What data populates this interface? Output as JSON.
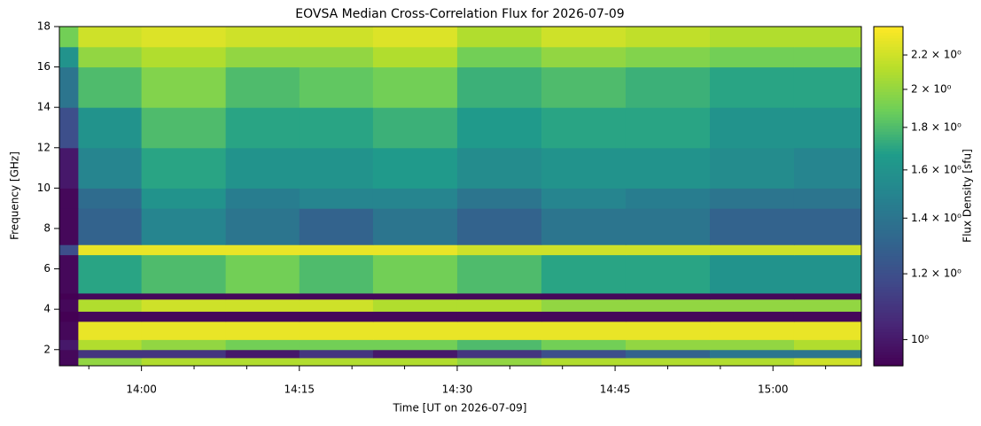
{
  "chart_data": {
    "type": "heatmap",
    "title": "EOVSA Median Cross-Correlation Flux for 2026-07-09",
    "x_label": "Time [UT on 2026-07-09]",
    "y_label": "Frequency [GHz]",
    "colorbar_label": "Flux Density [sfu]",
    "colormap": "viridis",
    "color_scale": "log",
    "x": [
      832.2,
      834,
      840,
      848,
      855,
      862,
      870,
      878,
      886,
      894,
      902,
      908.4
    ],
    "y": [
      1.2,
      1.6,
      2.0,
      2.5,
      3.4,
      3.9,
      4.5,
      4.8,
      6.7,
      7.2,
      9,
      10,
      12,
      14,
      16,
      17,
      18
    ],
    "z": [
      [
        0.95,
        2.0,
        2.1,
        2.1,
        2.1,
        2.1,
        2.0,
        2.1,
        2.1,
        2.1,
        2.2
      ],
      [
        0.95,
        1.1,
        1.1,
        1.0,
        1.1,
        1.0,
        1.1,
        1.2,
        1.3,
        1.4,
        1.4
      ],
      [
        1.0,
        2.1,
        2.0,
        1.9,
        1.9,
        1.9,
        1.8,
        1.9,
        2.0,
        2.0,
        2.1
      ],
      [
        0.95,
        2.3,
        2.3,
        2.3,
        2.3,
        2.3,
        2.3,
        2.3,
        2.3,
        2.3,
        2.3
      ],
      [
        0.93,
        0.95,
        0.95,
        0.95,
        0.95,
        0.95,
        0.95,
        0.95,
        0.95,
        0.95,
        0.95
      ],
      [
        0.95,
        2.1,
        2.2,
        2.2,
        2.2,
        2.1,
        2.1,
        2.0,
        2.0,
        2.0,
        2.0
      ],
      [
        0.93,
        0.95,
        0.95,
        0.95,
        0.95,
        0.95,
        0.95,
        0.95,
        0.95,
        0.95,
        0.95
      ],
      [
        0.95,
        1.7,
        1.8,
        1.9,
        1.8,
        1.9,
        1.8,
        1.7,
        1.7,
        1.6,
        1.6
      ],
      [
        1.2,
        2.3,
        2.3,
        2.3,
        2.3,
        2.3,
        2.2,
        2.2,
        2.2,
        2.2,
        2.2
      ],
      [
        0.95,
        1.3,
        1.5,
        1.4,
        1.3,
        1.4,
        1.3,
        1.4,
        1.4,
        1.3,
        1.3
      ],
      [
        0.95,
        1.35,
        1.6,
        1.45,
        1.5,
        1.5,
        1.4,
        1.5,
        1.45,
        1.4,
        1.4
      ],
      [
        1.0,
        1.5,
        1.7,
        1.6,
        1.6,
        1.65,
        1.55,
        1.6,
        1.6,
        1.55,
        1.5
      ],
      [
        1.2,
        1.6,
        1.8,
        1.7,
        1.7,
        1.75,
        1.65,
        1.7,
        1.7,
        1.6,
        1.6
      ],
      [
        1.4,
        1.8,
        1.95,
        1.8,
        1.85,
        1.9,
        1.75,
        1.8,
        1.75,
        1.7,
        1.7
      ],
      [
        1.6,
        2.0,
        2.1,
        2.0,
        2.0,
        2.1,
        1.9,
        2.0,
        1.95,
        1.9,
        1.9
      ],
      [
        1.9,
        2.2,
        2.25,
        2.2,
        2.2,
        2.25,
        2.1,
        2.2,
        2.15,
        2.1,
        2.1
      ]
    ],
    "xlim": [
      832.2,
      908.4
    ],
    "xticks": [
      {
        "value": 840,
        "label": "14:00"
      },
      {
        "value": 855,
        "label": "14:15"
      },
      {
        "value": 870,
        "label": "14:30"
      },
      {
        "value": 885,
        "label": "14:45"
      },
      {
        "value": 900,
        "label": "15:00"
      }
    ],
    "xminorticks": [
      835,
      845,
      850,
      860,
      865,
      875,
      880,
      890,
      895,
      905
    ],
    "ylim": [
      1.2,
      18
    ],
    "yticks": [
      2,
      4,
      6,
      8,
      10,
      12,
      14,
      16,
      18
    ],
    "clim": [
      0.93,
      2.38
    ],
    "cticks": [
      {
        "value": 1,
        "label": "10⁰"
      },
      {
        "value": 1.2,
        "label": "1.2 × 10⁰"
      },
      {
        "value": 1.4,
        "label": "1.4 × 10⁰"
      },
      {
        "value": 1.6,
        "label": "1.6 × 10⁰"
      },
      {
        "value": 1.8,
        "label": "1.8 × 10⁰"
      },
      {
        "value": 2,
        "label": "2 × 10⁰"
      },
      {
        "value": 2.2,
        "label": "2.2 × 10⁰"
      }
    ]
  }
}
